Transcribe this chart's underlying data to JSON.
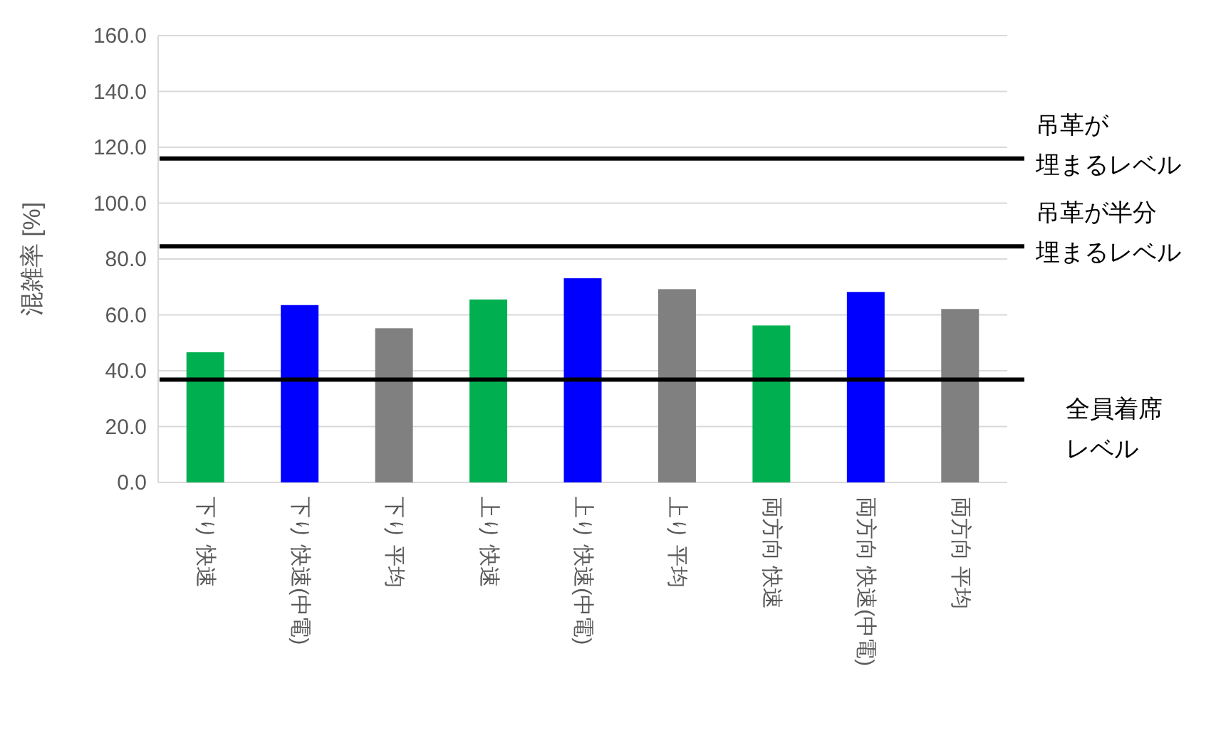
{
  "chart_data": {
    "type": "bar",
    "ylabel": "混雑率 [%]",
    "categories": [
      "下り 快速",
      "下り 快速(中電)",
      "下り 平均",
      "上り 快速",
      "上り 快速(中電)",
      "上り 平均",
      "両方向 快速",
      "両方向 快速(中電)",
      "両方向 平均"
    ],
    "values": [
      46.6,
      63.5,
      55.2,
      65.5,
      73.1,
      69.2,
      56.2,
      68.2,
      62.1
    ],
    "colors": [
      "#00b050",
      "#0000ff",
      "#808080",
      "#00b050",
      "#0000ff",
      "#808080",
      "#00b050",
      "#0000ff",
      "#808080"
    ],
    "ylim": [
      0,
      160
    ],
    "yticks": [
      {
        "value": 0,
        "label": "0.0"
      },
      {
        "value": 20,
        "label": "20.0"
      },
      {
        "value": 40,
        "label": "40.0"
      },
      {
        "value": 60,
        "label": "60.0"
      },
      {
        "value": 80,
        "label": "80.0"
      },
      {
        "value": 100,
        "label": "100.0"
      },
      {
        "value": 120,
        "label": "120.0"
      },
      {
        "value": 140,
        "label": "140.0"
      },
      {
        "value": 160,
        "label": "160.0"
      }
    ],
    "grid": "y",
    "ref_lines": [
      {
        "axis": "y",
        "value": 116,
        "label": "吊革が埋まるレベル",
        "color": "#000000"
      },
      {
        "axis": "y",
        "value": 84.5,
        "label": "吊革が半分埋まるレベル",
        "color": "#000000"
      },
      {
        "axis": "y",
        "value": 36.8,
        "label": "全員着席レベル",
        "color": "#000000"
      }
    ]
  }
}
